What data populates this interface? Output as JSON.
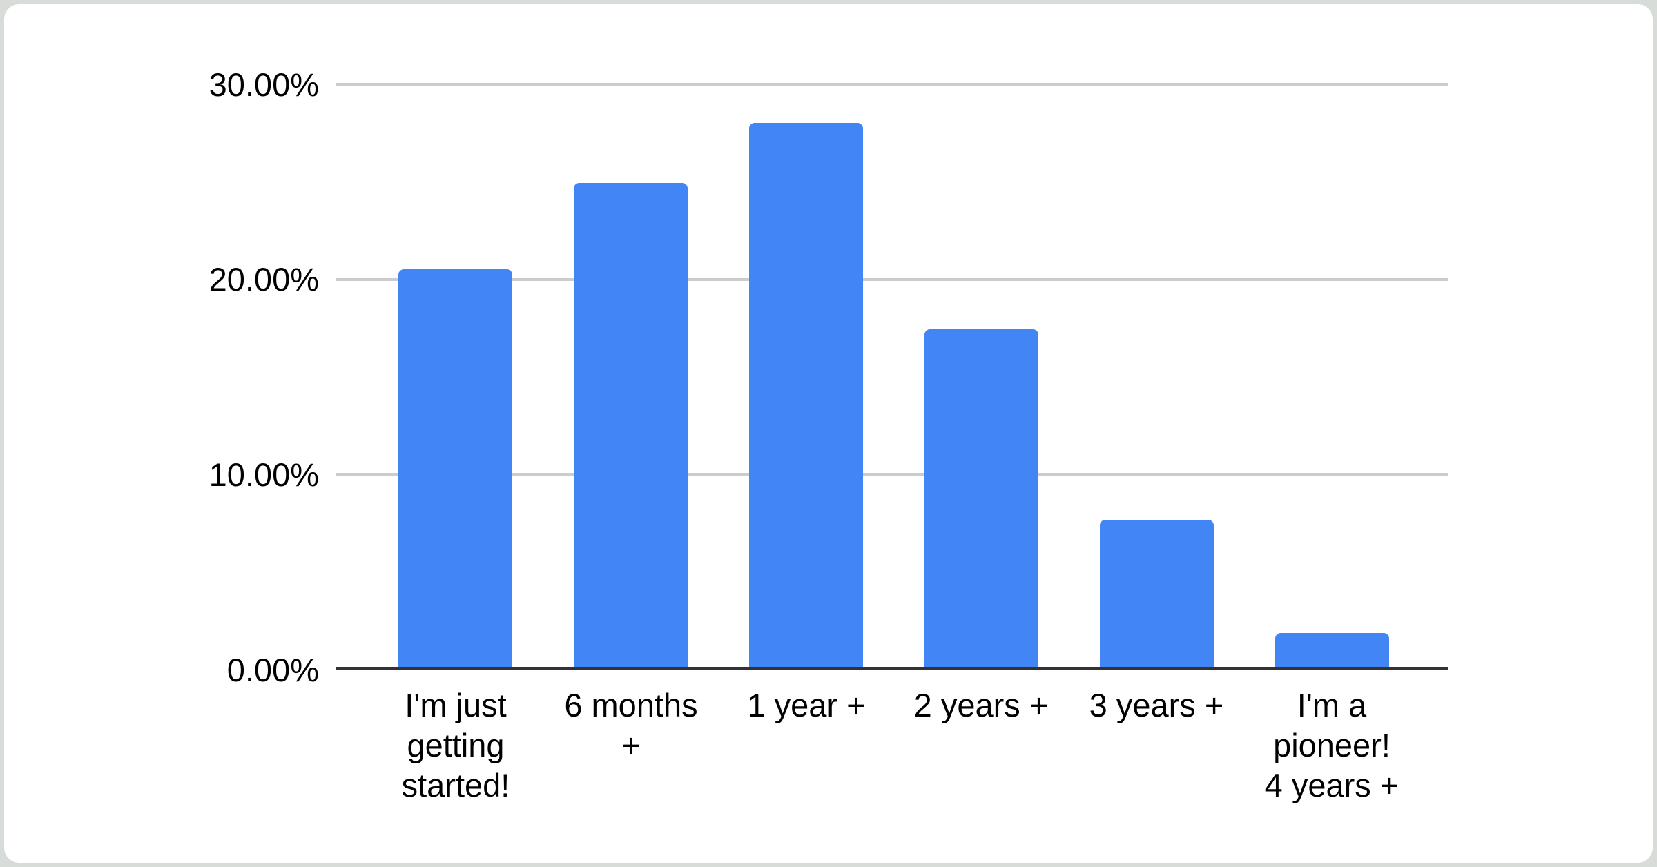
{
  "chart": {
    "colors": {
      "bar": "#4285f4",
      "gridline": "#cccccc",
      "axis_line": "#333333",
      "label_text": "#000000",
      "card_background": "#ffffff",
      "page_background": "#d7dcd9"
    },
    "y_axis": {
      "ticks": [
        {
          "label": "30.00%",
          "value": 30
        },
        {
          "label": "20.00%",
          "value": 20
        },
        {
          "label": "10.00%",
          "value": 10
        },
        {
          "label": "0.00%",
          "value": 0
        }
      ]
    },
    "x_axis": {
      "label_lines": [
        [
          "I'm just",
          "getting",
          "started!"
        ],
        [
          "6 months",
          "+"
        ],
        [
          "1 year +"
        ],
        [
          "2 years +"
        ],
        [
          "3 years +"
        ],
        [
          "I'm a",
          "pioneer!",
          "4 years +"
        ]
      ]
    }
  },
  "chart_data": {
    "type": "bar",
    "title": "",
    "xlabel": "",
    "ylabel": "",
    "categories": [
      "I'm just getting started!",
      "6 months +",
      "1 year +",
      "2 years +",
      "3 years +",
      "I'm a pioneer! 4 years +"
    ],
    "values": [
      20.45,
      24.87,
      27.94,
      17.37,
      7.6,
      1.8
    ],
    "value_format": "percent",
    "ylim": [
      0,
      30
    ],
    "y_tick_step": 10,
    "grid": true,
    "legend": "none",
    "bar_color": "#4285f4"
  }
}
